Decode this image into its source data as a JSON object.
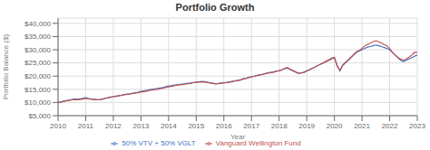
{
  "chart_data": {
    "type": "line",
    "title": "Portfolio Growth",
    "xlabel": "Year",
    "ylabel": "Portfolio Balance ($)",
    "xlim": [
      2010,
      2023
    ],
    "xticks": [
      2010,
      2011,
      2012,
      2013,
      2014,
      2015,
      2016,
      2017,
      2018,
      2019,
      2020,
      2021,
      2022,
      2023
    ],
    "ylim": [
      5000,
      42000
    ],
    "yticks": [
      {
        "value": 5000,
        "label": "$5,000"
      },
      {
        "value": 10000,
        "label": "$10,000"
      },
      {
        "value": 15000,
        "label": "$15,000"
      },
      {
        "value": 20000,
        "label": "$20,000"
      },
      {
        "value": 25000,
        "label": "$25,000"
      },
      {
        "value": 30000,
        "label": "$30,000"
      },
      {
        "value": 35000,
        "label": "$35,000"
      },
      {
        "value": 40000,
        "label": "$40,000"
      }
    ],
    "grid": true,
    "legend": "bottom",
    "x": [
      2010.0,
      2010.1,
      2010.2,
      2010.3,
      2010.4,
      2010.5,
      2010.6,
      2010.7,
      2010.8,
      2010.9,
      2011.0,
      2011.1,
      2011.2,
      2011.3,
      2011.4,
      2011.5,
      2011.6,
      2011.7,
      2011.8,
      2011.9,
      2012.0,
      2012.1,
      2012.2,
      2012.3,
      2012.4,
      2012.5,
      2012.6,
      2012.7,
      2012.8,
      2012.9,
      2013.0,
      2013.1,
      2013.2,
      2013.3,
      2013.4,
      2013.5,
      2013.6,
      2013.7,
      2013.8,
      2013.9,
      2014.0,
      2014.1,
      2014.2,
      2014.3,
      2014.4,
      2014.5,
      2014.6,
      2014.7,
      2014.8,
      2014.9,
      2015.0,
      2015.1,
      2015.2,
      2015.3,
      2015.4,
      2015.5,
      2015.6,
      2015.7,
      2015.8,
      2015.9,
      2016.0,
      2016.1,
      2016.2,
      2016.3,
      2016.4,
      2016.5,
      2016.6,
      2016.7,
      2016.8,
      2016.9,
      2017.0,
      2017.1,
      2017.2,
      2017.3,
      2017.4,
      2017.5,
      2017.6,
      2017.7,
      2017.8,
      2017.9,
      2018.0,
      2018.1,
      2018.2,
      2018.3,
      2018.4,
      2018.5,
      2018.6,
      2018.7,
      2018.8,
      2018.9,
      2019.0,
      2019.1,
      2019.2,
      2019.3,
      2019.4,
      2019.5,
      2019.6,
      2019.7,
      2019.8,
      2019.9,
      2020.0,
      2020.1,
      2020.2,
      2020.3,
      2020.4,
      2020.5,
      2020.6,
      2020.7,
      2020.8,
      2020.9,
      2021.0,
      2021.1,
      2021.2,
      2021.3,
      2021.4,
      2021.5,
      2021.6,
      2021.7,
      2021.8,
      2021.9,
      2022.0,
      2022.1,
      2022.2,
      2022.3,
      2022.4,
      2022.5,
      2022.6,
      2022.7,
      2022.8,
      2022.9,
      2023.0
    ],
    "series": [
      {
        "name": "50% VTV + 50% VGLT",
        "color": "#4472C4",
        "values": [
          10000,
          10200,
          10500,
          10700,
          10900,
          11100,
          11300,
          11200,
          11400,
          11600,
          11800,
          11500,
          11300,
          11200,
          11100,
          11000,
          11200,
          11500,
          11700,
          12000,
          12200,
          12400,
          12600,
          12800,
          13000,
          13200,
          13300,
          13500,
          13700,
          13900,
          14200,
          14400,
          14600,
          14800,
          15000,
          15200,
          15300,
          15500,
          15700,
          16000,
          16200,
          16400,
          16600,
          16700,
          16900,
          17000,
          17100,
          17300,
          17400,
          17600,
          17700,
          17800,
          18000,
          17900,
          17700,
          17500,
          17300,
          17100,
          17200,
          17400,
          17500,
          17600,
          17800,
          18000,
          18200,
          18400,
          18600,
          19000,
          19200,
          19500,
          19800,
          20000,
          20300,
          20500,
          20700,
          21000,
          21200,
          21400,
          21600,
          21900,
          22000,
          22300,
          22800,
          23000,
          22500,
          22000,
          21500,
          21000,
          21200,
          21500,
          22000,
          22500,
          23000,
          23500,
          24000,
          24500,
          25000,
          25500,
          26000,
          26500,
          27000,
          24000,
          22000,
          24000,
          25000,
          26000,
          27000,
          28000,
          29000,
          29500,
          30000,
          30500,
          31000,
          31200,
          31500,
          31800,
          31500,
          31200,
          30800,
          30500,
          30000,
          29000,
          28000,
          27000,
          26000,
          25500,
          26000,
          26500,
          27000,
          27500,
          28000
        ]
      },
      {
        "name": "Vanguard Wellington Fund",
        "color": "#C0504D",
        "values": [
          10000,
          10150,
          10400,
          10600,
          10800,
          11000,
          11100,
          11000,
          11100,
          11300,
          11500,
          11400,
          11200,
          11100,
          11000,
          11100,
          11300,
          11600,
          11800,
          12100,
          12200,
          12300,
          12500,
          12700,
          12900,
          13100,
          13200,
          13400,
          13600,
          13700,
          13900,
          14100,
          14300,
          14500,
          14700,
          14900,
          15000,
          15200,
          15400,
          15700,
          15900,
          16100,
          16300,
          16500,
          16700,
          16800,
          16900,
          17100,
          17200,
          17500,
          17600,
          17700,
          17800,
          17700,
          17600,
          17400,
          17200,
          17000,
          17100,
          17300,
          17400,
          17500,
          17700,
          17900,
          18100,
          18300,
          18500,
          18900,
          19100,
          19400,
          19700,
          19900,
          20200,
          20400,
          20600,
          20900,
          21100,
          21300,
          21500,
          21800,
          22100,
          22400,
          23000,
          23300,
          22600,
          22100,
          21600,
          21100,
          21200,
          21400,
          21900,
          22400,
          22900,
          23400,
          24000,
          24500,
          25000,
          25600,
          26200,
          26800,
          27100,
          23800,
          22100,
          24200,
          25200,
          26200,
          27200,
          28200,
          29200,
          29700,
          30500,
          31500,
          32000,
          32500,
          33000,
          33500,
          33000,
          32500,
          32000,
          31500,
          30500,
          29000,
          28000,
          27000,
          26500,
          26000,
          26500,
          27200,
          28000,
          29000,
          29000
        ]
      }
    ]
  }
}
